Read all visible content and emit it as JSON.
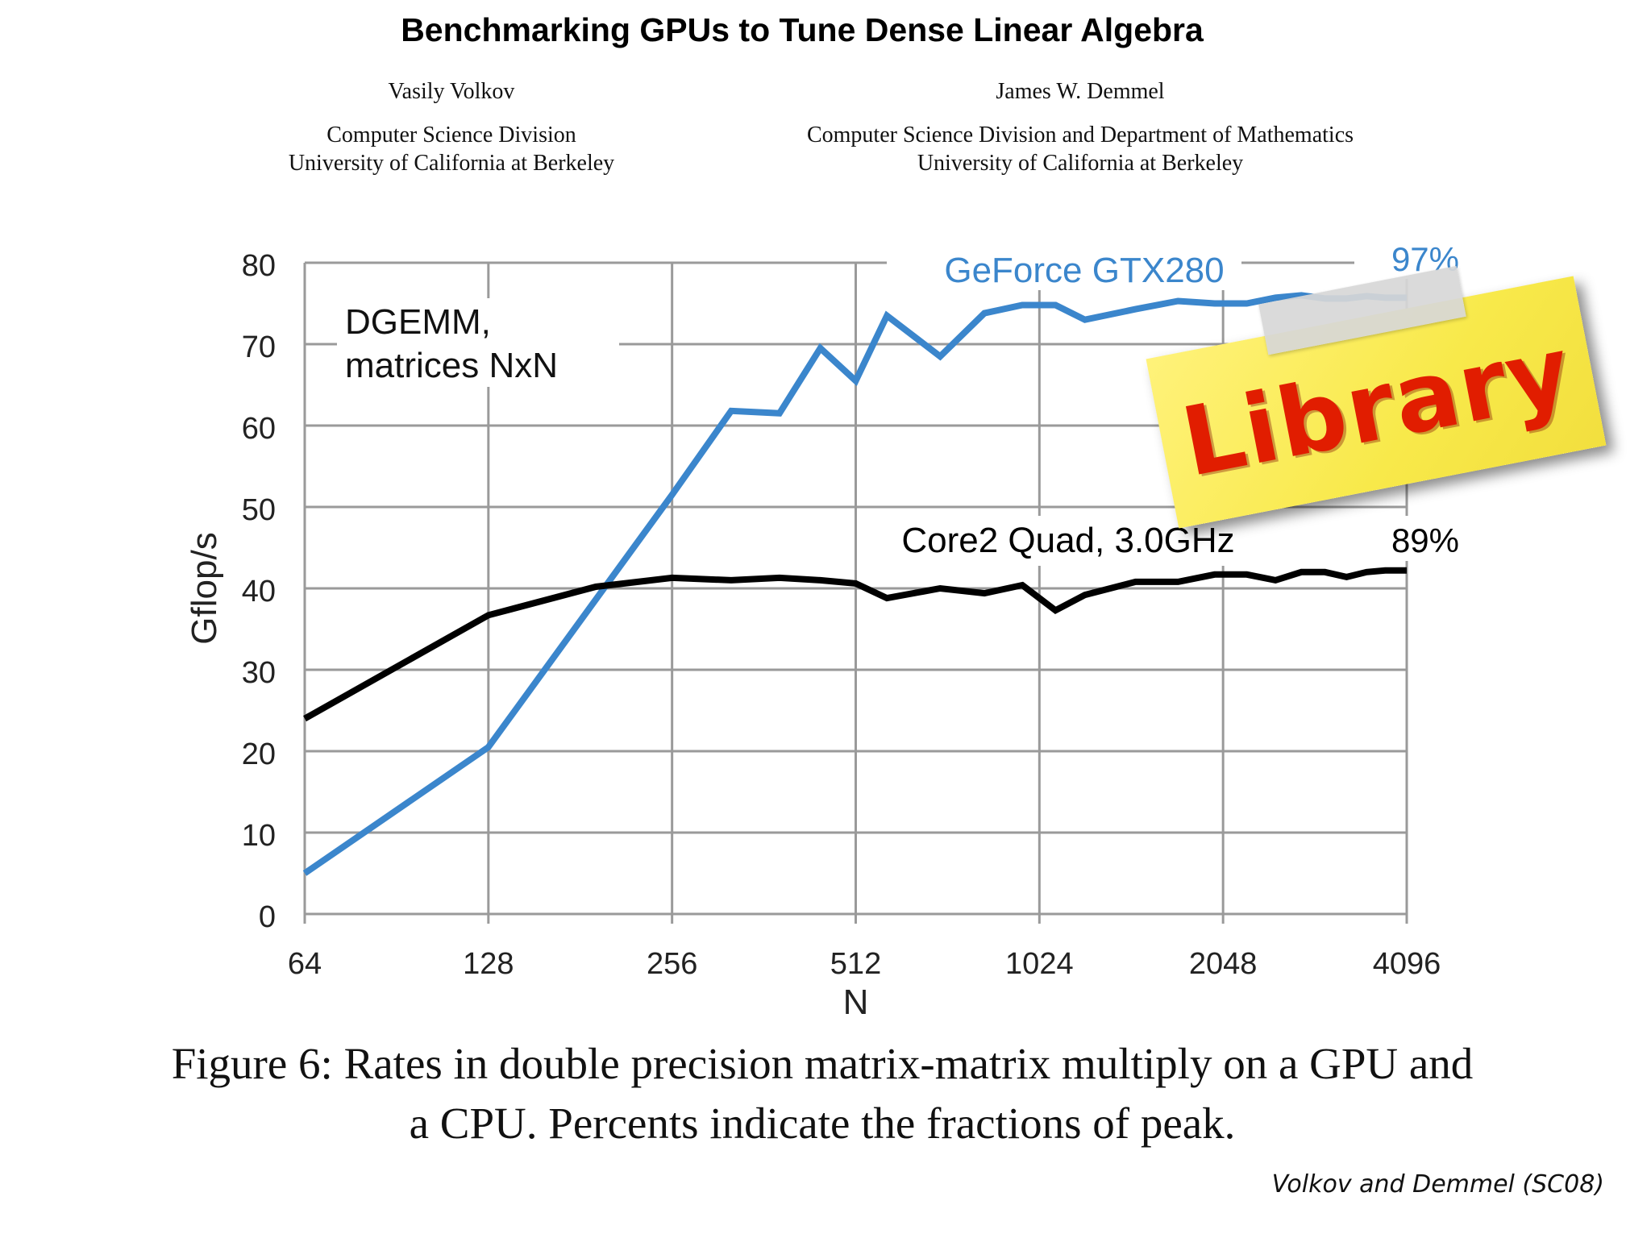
{
  "paper": {
    "title": "Benchmarking GPUs to Tune Dense Linear Algebra",
    "authors": [
      {
        "name": "Vasily Volkov",
        "affiliation_lines": [
          "Computer Science Division",
          "University of California at Berkeley"
        ]
      },
      {
        "name": "James W. Demmel",
        "affiliation_lines": [
          "Computer Science Division and Department of Mathematics",
          "University of California at Berkeley"
        ]
      }
    ]
  },
  "chart_data": {
    "type": "line",
    "ylabel": "Gflop/s",
    "xlabel": "N",
    "x_scale": "log2",
    "x_ticks": [
      "64",
      "128",
      "256",
      "512",
      "1024",
      "2048",
      "4096"
    ],
    "ylim": [
      0,
      80
    ],
    "y_ticks": [
      "0",
      "10",
      "20",
      "30",
      "40",
      "50",
      "60",
      "70",
      "80"
    ],
    "grid": true,
    "inset_text": [
      "DGEMM,",
      "matrices NxN"
    ],
    "series": [
      {
        "name": "GeForce GTX280",
        "color": "#3b86cc",
        "end_label": "97%",
        "x": [
          64,
          128,
          256,
          320,
          384,
          448,
          512,
          576,
          704,
          832,
          960,
          1088,
          1216,
          1472,
          1728,
          1984,
          2240,
          2496,
          2752,
          3008,
          3264,
          3520,
          3776,
          4096
        ],
        "y": [
          5,
          20.5,
          51.5,
          61.8,
          61.5,
          69.5,
          65.5,
          73.5,
          68.5,
          73.8,
          74.8,
          74.8,
          73,
          74.3,
          75.3,
          75,
          75,
          75.7,
          76,
          75.6,
          75.6,
          75.9,
          75.7,
          75.7
        ]
      },
      {
        "name": "Core2 Quad, 3.0GHz",
        "color": "#000000",
        "end_label": "89%",
        "x": [
          64,
          128,
          192,
          256,
          320,
          384,
          448,
          512,
          576,
          704,
          832,
          960,
          1088,
          1216,
          1472,
          1728,
          1984,
          2240,
          2496,
          2752,
          3008,
          3264,
          3520,
          3776,
          4096
        ],
        "y": [
          24,
          36.7,
          40.2,
          41.3,
          41,
          41.3,
          41,
          40.6,
          38.8,
          40,
          39.4,
          40.4,
          37.3,
          39.2,
          40.8,
          40.8,
          41.7,
          41.7,
          41,
          42,
          42,
          41.4,
          42,
          42.2,
          42.2
        ]
      }
    ]
  },
  "sticker": {
    "text": "Library"
  },
  "caption": "Figure 6: Rates in double precision matrix-matrix multiply on a GPU and a CPU. Percents indicate the fractions of peak.",
  "credit": "Volkov and Demmel (SC08)"
}
